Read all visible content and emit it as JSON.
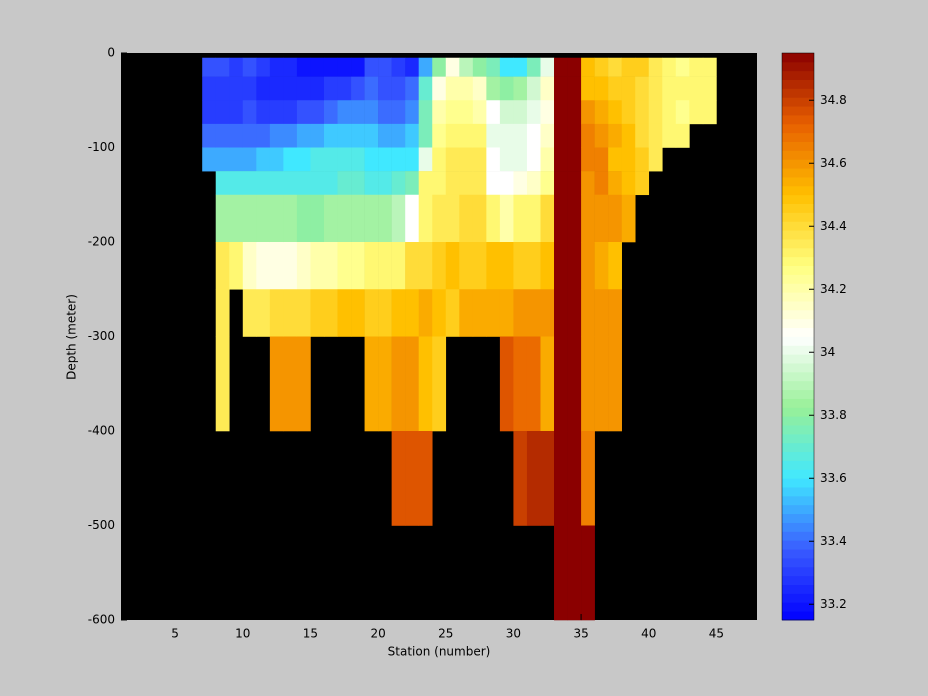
{
  "chart_data": {
    "type": "heatmap",
    "xlabel": "Station (number)",
    "ylabel": "Depth (meter)",
    "xlim": [
      1,
      48
    ],
    "xticks": [
      5,
      10,
      15,
      20,
      25,
      30,
      35,
      40,
      45
    ],
    "ylim": [
      -600,
      0
    ],
    "yticks": [
      -600,
      -500,
      -400,
      -300,
      -200,
      -100,
      0
    ],
    "x_edges": [
      7,
      8,
      9,
      10,
      11,
      12,
      13,
      14,
      15,
      16,
      17,
      18,
      19,
      20,
      21,
      22,
      23,
      24,
      25,
      26,
      27,
      28,
      29,
      30,
      31,
      32,
      33,
      34,
      35,
      36,
      37,
      38,
      39,
      40,
      41,
      42,
      43,
      44,
      45
    ],
    "y_edges": [
      -5,
      -25,
      -50,
      -75,
      -100,
      -125,
      -150,
      -200,
      -250,
      -300,
      -400,
      -500,
      -600
    ],
    "clim": [
      33.15,
      34.95
    ],
    "cticks": [
      33.2,
      33.4,
      33.6,
      33.8,
      34,
      34.2,
      34.4,
      34.6,
      34.8
    ],
    "colormap": [
      "#0000ff",
      "#3a5cff",
      "#40e8ff",
      "#98f098",
      "#ffffff",
      "#ffff80",
      "#ffc000",
      "#e86000",
      "#8b0000"
    ],
    "background": "#000000",
    "values": [
      [
        33.35,
        33.3,
        33.3,
        33.4,
        33.5,
        null,
        null,
        null,
        null,
        null,
        null,
        null
      ],
      [
        33.35,
        33.3,
        33.3,
        33.4,
        33.5,
        33.65,
        33.85,
        34.35,
        34.35,
        34.35,
        null,
        null
      ],
      [
        33.3,
        33.3,
        33.3,
        33.4,
        33.5,
        33.65,
        33.85,
        34.3,
        null,
        null,
        null,
        null
      ],
      [
        33.35,
        33.3,
        33.35,
        33.4,
        33.5,
        33.65,
        33.85,
        34.15,
        34.35,
        null,
        null,
        null
      ],
      [
        33.3,
        33.25,
        33.3,
        33.4,
        33.55,
        33.65,
        33.85,
        34.1,
        34.35,
        null,
        null,
        null
      ],
      [
        33.25,
        33.25,
        33.3,
        33.45,
        33.55,
        33.65,
        33.85,
        34.1,
        34.4,
        34.6,
        null,
        null
      ],
      [
        33.25,
        33.25,
        33.3,
        33.45,
        33.6,
        33.65,
        33.85,
        34.1,
        34.4,
        34.6,
        null,
        null
      ],
      [
        33.2,
        33.25,
        33.35,
        33.5,
        33.6,
        33.65,
        33.8,
        34.15,
        34.4,
        34.6,
        null,
        null
      ],
      [
        33.2,
        33.25,
        33.35,
        33.5,
        33.65,
        33.65,
        33.8,
        34.2,
        34.45,
        null,
        null,
        null
      ],
      [
        33.2,
        33.3,
        33.4,
        33.55,
        33.65,
        33.65,
        33.85,
        34.2,
        34.45,
        null,
        null,
        null
      ],
      [
        33.2,
        33.3,
        33.45,
        33.55,
        33.65,
        33.7,
        33.85,
        34.25,
        34.5,
        null,
        null,
        null
      ],
      [
        33.2,
        33.35,
        33.45,
        33.55,
        33.65,
        33.7,
        33.85,
        34.25,
        34.5,
        null,
        null,
        null
      ],
      [
        33.35,
        33.4,
        33.45,
        33.55,
        33.6,
        33.65,
        33.85,
        34.3,
        34.45,
        34.55,
        null,
        null
      ],
      [
        33.35,
        33.35,
        33.4,
        33.5,
        33.6,
        33.65,
        33.85,
        34.3,
        34.45,
        34.55,
        null,
        null
      ],
      [
        33.3,
        33.35,
        33.4,
        33.5,
        33.6,
        33.7,
        33.9,
        34.3,
        34.5,
        34.6,
        34.75,
        null
      ],
      [
        33.25,
        33.4,
        33.45,
        33.55,
        33.6,
        33.75,
        34.05,
        34.4,
        34.5,
        34.6,
        34.75,
        null
      ],
      [
        33.5,
        33.7,
        33.75,
        33.75,
        34.0,
        34.3,
        34.3,
        34.4,
        34.55,
        34.5,
        34.75,
        null
      ],
      [
        33.8,
        34.1,
        34.2,
        34.25,
        34.3,
        34.3,
        34.35,
        34.45,
        34.5,
        34.45,
        null,
        null
      ],
      [
        34.1,
        34.2,
        34.25,
        34.3,
        34.35,
        34.35,
        34.35,
        34.5,
        34.45,
        null,
        null,
        null
      ],
      [
        33.9,
        34.2,
        34.25,
        34.3,
        34.35,
        34.35,
        34.4,
        34.45,
        34.55,
        null,
        null,
        null
      ],
      [
        33.8,
        34.15,
        34.2,
        34.3,
        34.35,
        34.35,
        34.4,
        34.45,
        34.55,
        null,
        null,
        null
      ],
      [
        33.75,
        33.85,
        34.05,
        34.0,
        34.05,
        34.05,
        34.3,
        34.5,
        34.55,
        null,
        null,
        null
      ],
      [
        33.6,
        33.8,
        33.95,
        34.0,
        34.0,
        34.05,
        34.2,
        34.5,
        34.55,
        34.75,
        null,
        null
      ],
      [
        33.6,
        33.85,
        33.95,
        34.0,
        34.0,
        34.1,
        34.3,
        34.45,
        34.6,
        34.7,
        34.8,
        null
      ],
      [
        33.75,
        33.95,
        34.0,
        34.05,
        34.05,
        34.15,
        34.3,
        34.45,
        34.6,
        34.7,
        34.85,
        null
      ],
      [
        34.0,
        34.15,
        34.1,
        34.15,
        34.2,
        34.25,
        34.4,
        34.5,
        34.6,
        34.55,
        34.85,
        null
      ],
      [
        34.95,
        34.95,
        34.95,
        34.95,
        34.95,
        34.95,
        34.95,
        34.95,
        34.95,
        34.95,
        34.95,
        34.95
      ],
      [
        34.95,
        34.95,
        34.95,
        34.95,
        34.95,
        34.95,
        34.95,
        34.95,
        34.95,
        34.95,
        34.95,
        34.95
      ],
      [
        34.5,
        34.5,
        34.6,
        34.65,
        34.65,
        34.6,
        34.6,
        34.6,
        34.6,
        34.6,
        34.65,
        34.95
      ],
      [
        34.45,
        34.5,
        34.55,
        34.6,
        34.65,
        34.65,
        34.6,
        34.55,
        34.6,
        34.6,
        null,
        null
      ],
      [
        34.4,
        34.45,
        34.5,
        34.55,
        34.5,
        34.55,
        34.6,
        34.5,
        34.6,
        34.6,
        null,
        null
      ],
      [
        34.45,
        34.45,
        34.45,
        34.5,
        34.5,
        34.5,
        34.55,
        null,
        null,
        null,
        null,
        null
      ],
      [
        34.45,
        34.4,
        34.4,
        34.4,
        34.45,
        34.45,
        null,
        null,
        null,
        null,
        null,
        null
      ],
      [
        34.35,
        34.35,
        34.35,
        34.35,
        34.35,
        null,
        null,
        null,
        null,
        null,
        null,
        null
      ],
      [
        34.3,
        34.3,
        34.3,
        34.3,
        null,
        null,
        null,
        null,
        null,
        null,
        null,
        null
      ],
      [
        34.25,
        34.3,
        34.25,
        34.3,
        null,
        null,
        null,
        null,
        null,
        null,
        null,
        null
      ],
      [
        34.3,
        34.3,
        34.3,
        null,
        null,
        null,
        null,
        null,
        null,
        null,
        null,
        null
      ],
      [
        34.3,
        34.3,
        34.3,
        null,
        null,
        null,
        null,
        null,
        null,
        null,
        null,
        null
      ]
    ]
  }
}
